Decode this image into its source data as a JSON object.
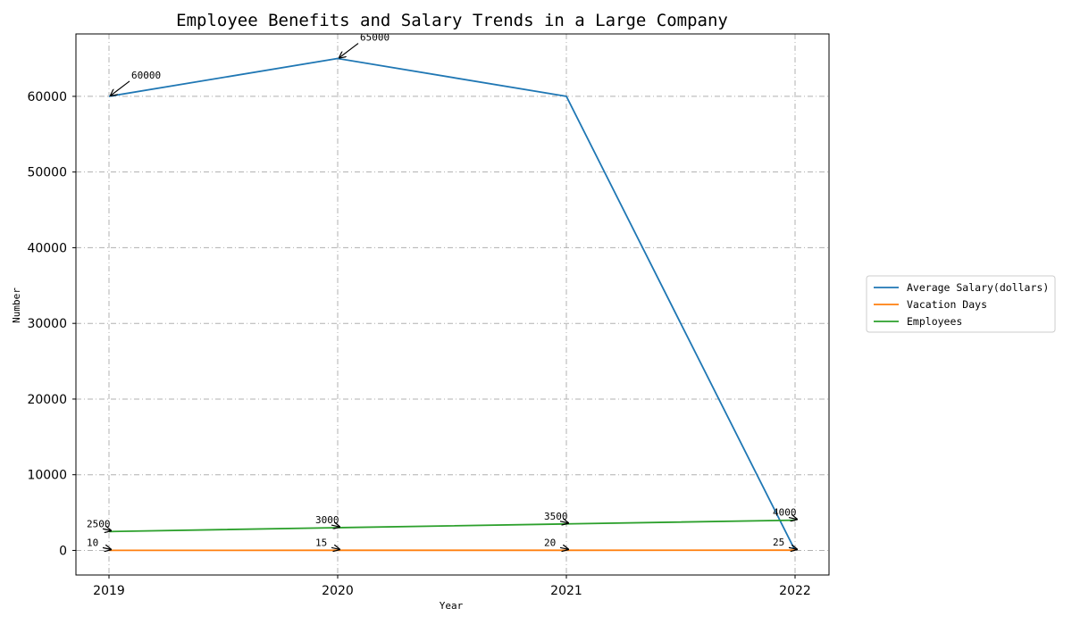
{
  "chart_data": {
    "type": "line",
    "title": "Employee Benefits and Salary Trends in a Large Company",
    "xlabel": "Year",
    "ylabel": "Number",
    "categories": [
      "2019",
      "2020",
      "2021",
      "2022"
    ],
    "ylim": [
      -3250,
      68250
    ],
    "yticks": [
      0,
      10000,
      20000,
      30000,
      40000,
      50000,
      60000
    ],
    "grid": true,
    "legend_position": "right",
    "series": [
      {
        "name": "Average Salary(dollars)",
        "values": [
          60000,
          65000,
          60000,
          0
        ],
        "color": "#1f77b4",
        "labels": [
          "60000",
          "65000",
          "",
          ""
        ]
      },
      {
        "name": "Vacation Days",
        "values": [
          10,
          15,
          20,
          25
        ],
        "color": "#ff7f0e",
        "labels": [
          "10",
          "15",
          "20",
          "25"
        ]
      },
      {
        "name": "Employees",
        "values": [
          2500,
          3000,
          3500,
          4000
        ],
        "color": "#2ca02c",
        "labels": [
          "2500",
          "3000",
          "3500",
          "4000"
        ]
      }
    ]
  }
}
